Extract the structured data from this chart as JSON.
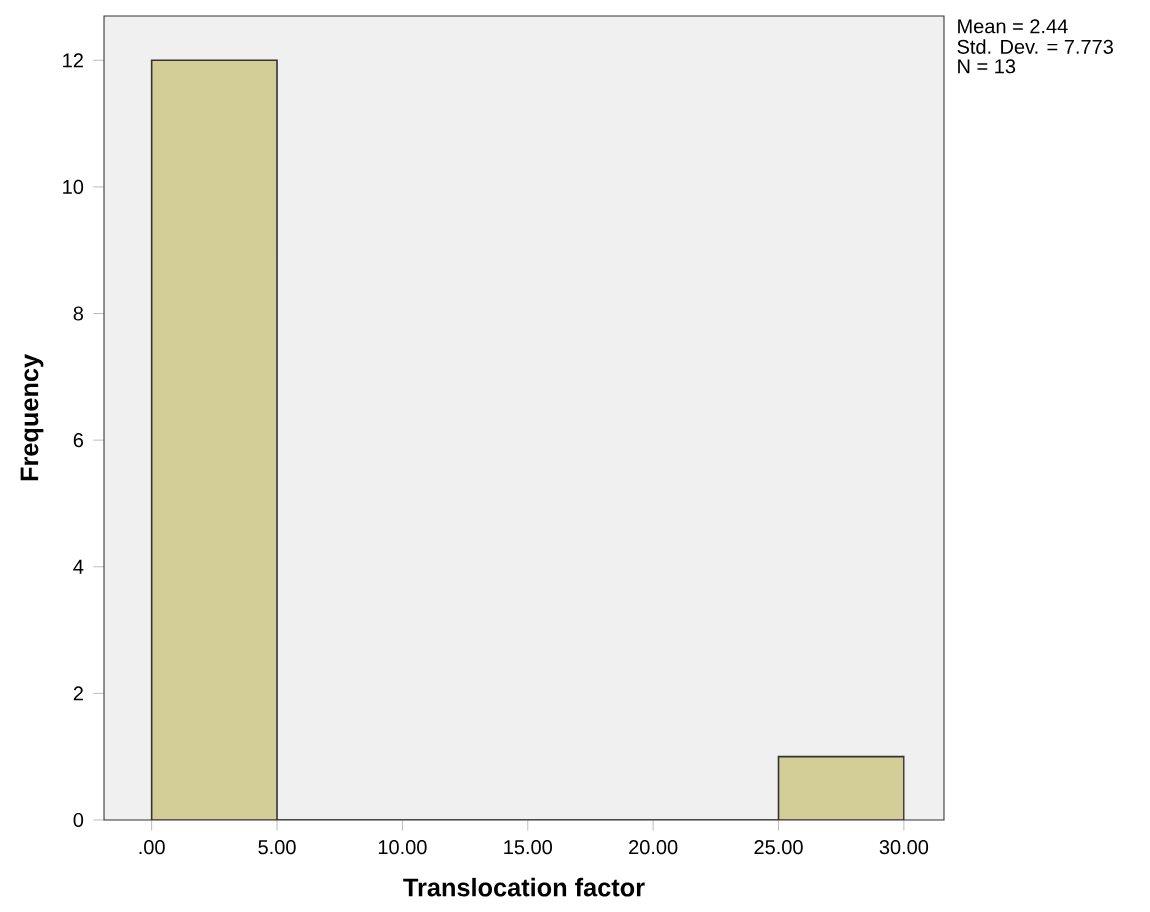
{
  "chart_data": {
    "type": "histogram",
    "xlabel": "Translocation factor",
    "ylabel": "Frequency",
    "bins": [
      0,
      5,
      10,
      15,
      20,
      25,
      30
    ],
    "values": [
      12,
      0,
      0,
      0,
      0,
      1
    ],
    "color": "#d3ce97",
    "xlim": [
      -1.9,
      31.6
    ],
    "xticks": [
      {
        "value": 0,
        "label": ".00"
      },
      {
        "value": 5,
        "label": "5.00"
      },
      {
        "value": 10,
        "label": "10.00"
      },
      {
        "value": 15,
        "label": "15.00"
      },
      {
        "value": 20,
        "label": "20.00"
      },
      {
        "value": 25,
        "label": "25.00"
      },
      {
        "value": 30,
        "label": "30.00"
      }
    ],
    "ylim": [
      0,
      12.7
    ],
    "yticks": [
      0,
      2,
      4,
      6,
      8,
      10,
      12
    ],
    "annotations": [
      "Mean = 2.44",
      "Std. Dev. = 7.773",
      "N = 13"
    ]
  }
}
